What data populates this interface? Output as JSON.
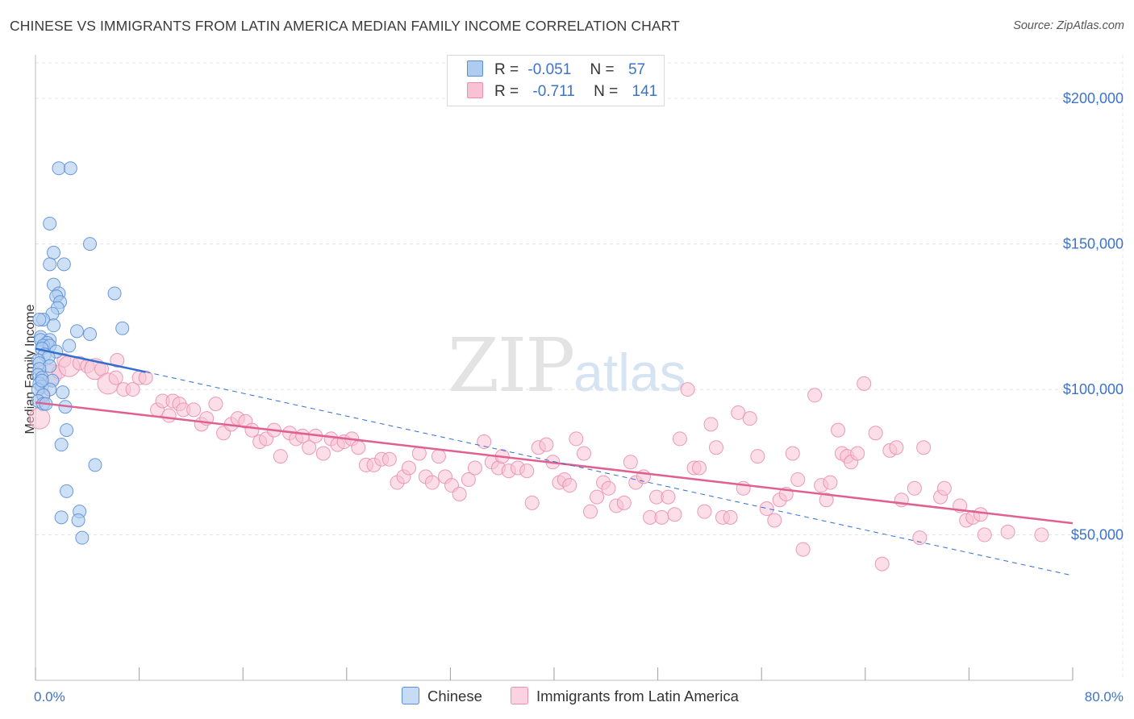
{
  "title": "CHINESE VS IMMIGRANTS FROM LATIN AMERICA MEDIAN FAMILY INCOME CORRELATION CHART",
  "source": "Source: ZipAtlas.com",
  "watermark": {
    "zip": "ZIP",
    "atlas": "atlas"
  },
  "legend_top": {
    "rows": [
      {
        "r_label": "R =",
        "r_value": "-0.051",
        "n_label": "N =",
        "n_value": "57"
      },
      {
        "r_label": "R =",
        "r_value": "-0.711",
        "n_label": "N =",
        "n_value": "141"
      }
    ]
  },
  "colors": {
    "blue_fill": "#aecbf0",
    "blue_stroke": "#5b8fd6",
    "blue_line": "#2f6fd0",
    "pink_fill": "#f7c2d4",
    "pink_stroke": "#ea8fb0",
    "pink_line": "#e06090",
    "grid": "#e4e4e4",
    "axis_text": "#3d73c9"
  },
  "chart_data": {
    "type": "scatter",
    "title": "CHINESE VS IMMIGRANTS FROM LATIN AMERICA MEDIAN FAMILY INCOME CORRELATION CHART",
    "xlabel": "",
    "ylabel": "Median Family Income",
    "xlim": [
      0,
      80
    ],
    "ylim": [
      0,
      215000
    ],
    "x_tick_labels": [
      "0.0%",
      "80.0%"
    ],
    "y_ticks": [
      50000,
      100000,
      150000,
      200000
    ],
    "y_tick_labels": [
      "$50,000",
      "$100,000",
      "$150,000",
      "$200,000"
    ],
    "grid": true,
    "legend_position": "top-center and bottom",
    "series": [
      {
        "name": "Chinese",
        "color": "#aecbf0",
        "R": -0.051,
        "N": 57,
        "trend": {
          "x": [
            0,
            8.5
          ],
          "y": [
            114000,
            106000
          ],
          "style": "solid"
        },
        "trend_extended": {
          "x": [
            8.5,
            80
          ],
          "y": [
            106000,
            36000
          ],
          "style": "dashed"
        },
        "points": [
          [
            1.8,
            176000
          ],
          [
            2.7,
            176000
          ],
          [
            1.1,
            157000
          ],
          [
            4.2,
            150000
          ],
          [
            1.4,
            147000
          ],
          [
            1.1,
            143000
          ],
          [
            2.2,
            143000
          ],
          [
            1.4,
            136000
          ],
          [
            1.8,
            133000
          ],
          [
            6.1,
            133000
          ],
          [
            1.6,
            132000
          ],
          [
            1.9,
            130000
          ],
          [
            1.7,
            128000
          ],
          [
            1.3,
            126000
          ],
          [
            0.6,
            124000
          ],
          [
            0.3,
            124000
          ],
          [
            1.4,
            122000
          ],
          [
            6.7,
            121000
          ],
          [
            3.2,
            120000
          ],
          [
            4.2,
            119000
          ],
          [
            0.4,
            118000
          ],
          [
            0.4,
            117000
          ],
          [
            1.1,
            117000
          ],
          [
            0.9,
            116000
          ],
          [
            0.6,
            115000
          ],
          [
            1.1,
            115000
          ],
          [
            2.6,
            115000
          ],
          [
            0.5,
            114000
          ],
          [
            1.6,
            113000
          ],
          [
            0.7,
            112000
          ],
          [
            1.0,
            111000
          ],
          [
            0.2,
            110000
          ],
          [
            0.3,
            109000
          ],
          [
            1.1,
            108000
          ],
          [
            0.3,
            107000
          ],
          [
            0.2,
            105000
          ],
          [
            0.5,
            104000
          ],
          [
            1.3,
            103000
          ],
          [
            0.3,
            102000
          ],
          [
            0.5,
            101000
          ],
          [
            1.1,
            100000
          ],
          [
            0.2,
            100000
          ],
          [
            2.1,
            99000
          ],
          [
            0.6,
            98000
          ],
          [
            0.2,
            96000
          ],
          [
            0.6,
            95000
          ],
          [
            0.8,
            95000
          ],
          [
            2.3,
            94000
          ],
          [
            2.4,
            86000
          ],
          [
            2.0,
            81000
          ],
          [
            4.6,
            74000
          ],
          [
            2.4,
            65000
          ],
          [
            3.4,
            58000
          ],
          [
            2.0,
            56000
          ],
          [
            3.3,
            55000
          ],
          [
            3.6,
            49000
          ],
          [
            0.5,
            103000
          ]
        ]
      },
      {
        "name": "Immigrants from Latin America",
        "color": "#f7c2d4",
        "R": -0.711,
        "N": 141,
        "trend": {
          "x": [
            0,
            80
          ],
          "y": [
            95500,
            54000
          ],
          "style": "solid"
        },
        "points": [
          [
            0.3,
            90000
          ],
          [
            0.6,
            98000
          ],
          [
            1.2,
            105000
          ],
          [
            1.8,
            106000
          ],
          [
            2.2,
            110000
          ],
          [
            2.6,
            108000
          ],
          [
            3.4,
            109000
          ],
          [
            4.0,
            108000
          ],
          [
            4.6,
            107000
          ],
          [
            5.1,
            107000
          ],
          [
            5.6,
            102000
          ],
          [
            6.2,
            104000
          ],
          [
            6.3,
            110000
          ],
          [
            6.8,
            100000
          ],
          [
            7.5,
            100000
          ],
          [
            8.0,
            104000
          ],
          [
            8.5,
            104000
          ],
          [
            9.4,
            93000
          ],
          [
            9.8,
            96000
          ],
          [
            10.3,
            91000
          ],
          [
            10.6,
            96000
          ],
          [
            11.1,
            95000
          ],
          [
            11.4,
            93000
          ],
          [
            12.2,
            93000
          ],
          [
            12.8,
            88000
          ],
          [
            13.2,
            90000
          ],
          [
            13.9,
            95000
          ],
          [
            14.5,
            85000
          ],
          [
            15.1,
            88000
          ],
          [
            15.6,
            90000
          ],
          [
            16.2,
            89000
          ],
          [
            16.7,
            86000
          ],
          [
            17.3,
            82000
          ],
          [
            17.8,
            83000
          ],
          [
            18.4,
            86000
          ],
          [
            18.9,
            77000
          ],
          [
            19.6,
            85000
          ],
          [
            20.1,
            83000
          ],
          [
            20.6,
            84000
          ],
          [
            21.1,
            80000
          ],
          [
            21.6,
            84000
          ],
          [
            22.2,
            78000
          ],
          [
            22.8,
            83000
          ],
          [
            23.3,
            81000
          ],
          [
            23.8,
            82000
          ],
          [
            24.4,
            83000
          ],
          [
            24.9,
            80000
          ],
          [
            25.5,
            74000
          ],
          [
            26.1,
            74000
          ],
          [
            26.7,
            76000
          ],
          [
            27.3,
            76000
          ],
          [
            27.9,
            68000
          ],
          [
            28.4,
            70000
          ],
          [
            28.8,
            73000
          ],
          [
            29.6,
            78000
          ],
          [
            30.1,
            70000
          ],
          [
            30.6,
            68000
          ],
          [
            31.1,
            77000
          ],
          [
            31.6,
            70000
          ],
          [
            32.1,
            67000
          ],
          [
            32.7,
            64000
          ],
          [
            33.4,
            69000
          ],
          [
            33.9,
            73000
          ],
          [
            34.6,
            82000
          ],
          [
            35.2,
            75000
          ],
          [
            35.7,
            73000
          ],
          [
            36.0,
            77000
          ],
          [
            36.5,
            72000
          ],
          [
            37.2,
            73000
          ],
          [
            37.9,
            72000
          ],
          [
            38.3,
            61000
          ],
          [
            38.8,
            80000
          ],
          [
            39.4,
            81000
          ],
          [
            39.9,
            75000
          ],
          [
            40.4,
            68000
          ],
          [
            40.8,
            69000
          ],
          [
            41.2,
            67000
          ],
          [
            41.7,
            83000
          ],
          [
            42.3,
            78000
          ],
          [
            42.8,
            58000
          ],
          [
            43.3,
            63000
          ],
          [
            43.8,
            68000
          ],
          [
            44.2,
            66000
          ],
          [
            44.8,
            60000
          ],
          [
            45.4,
            61000
          ],
          [
            45.9,
            75000
          ],
          [
            46.3,
            68000
          ],
          [
            46.9,
            70000
          ],
          [
            47.4,
            56000
          ],
          [
            47.9,
            63000
          ],
          [
            48.3,
            56000
          ],
          [
            48.8,
            63000
          ],
          [
            49.3,
            57000
          ],
          [
            49.7,
            83000
          ],
          [
            50.3,
            100000
          ],
          [
            50.8,
            73000
          ],
          [
            51.2,
            73000
          ],
          [
            51.6,
            58000
          ],
          [
            52.1,
            88000
          ],
          [
            52.5,
            80000
          ],
          [
            53.0,
            56000
          ],
          [
            53.6,
            56000
          ],
          [
            54.2,
            92000
          ],
          [
            54.6,
            66000
          ],
          [
            55.1,
            90000
          ],
          [
            55.7,
            77000
          ],
          [
            56.4,
            59000
          ],
          [
            57.0,
            55000
          ],
          [
            57.4,
            62000
          ],
          [
            57.9,
            64000
          ],
          [
            58.4,
            78000
          ],
          [
            58.8,
            69000
          ],
          [
            59.2,
            45000
          ],
          [
            60.1,
            98000
          ],
          [
            60.6,
            67000
          ],
          [
            61.0,
            62000
          ],
          [
            61.3,
            68000
          ],
          [
            61.9,
            86000
          ],
          [
            62.2,
            78000
          ],
          [
            62.6,
            77000
          ],
          [
            62.9,
            75000
          ],
          [
            63.4,
            78000
          ],
          [
            63.9,
            102000
          ],
          [
            64.8,
            85000
          ],
          [
            65.3,
            40000
          ],
          [
            65.9,
            79000
          ],
          [
            66.4,
            80000
          ],
          [
            66.8,
            62000
          ],
          [
            67.8,
            66000
          ],
          [
            68.2,
            49000
          ],
          [
            68.5,
            80000
          ],
          [
            69.8,
            63000
          ],
          [
            70.1,
            66000
          ],
          [
            71.3,
            60000
          ],
          [
            71.8,
            55000
          ],
          [
            72.3,
            56000
          ],
          [
            72.9,
            57000
          ],
          [
            73.2,
            50000
          ],
          [
            75.0,
            51000
          ],
          [
            77.6,
            50000
          ]
        ],
        "large_points": [
          [
            0.3,
            90000
          ],
          [
            1.2,
            105000
          ],
          [
            2.6,
            108000
          ],
          [
            4.6,
            107000
          ],
          [
            5.6,
            102000
          ]
        ]
      }
    ]
  }
}
